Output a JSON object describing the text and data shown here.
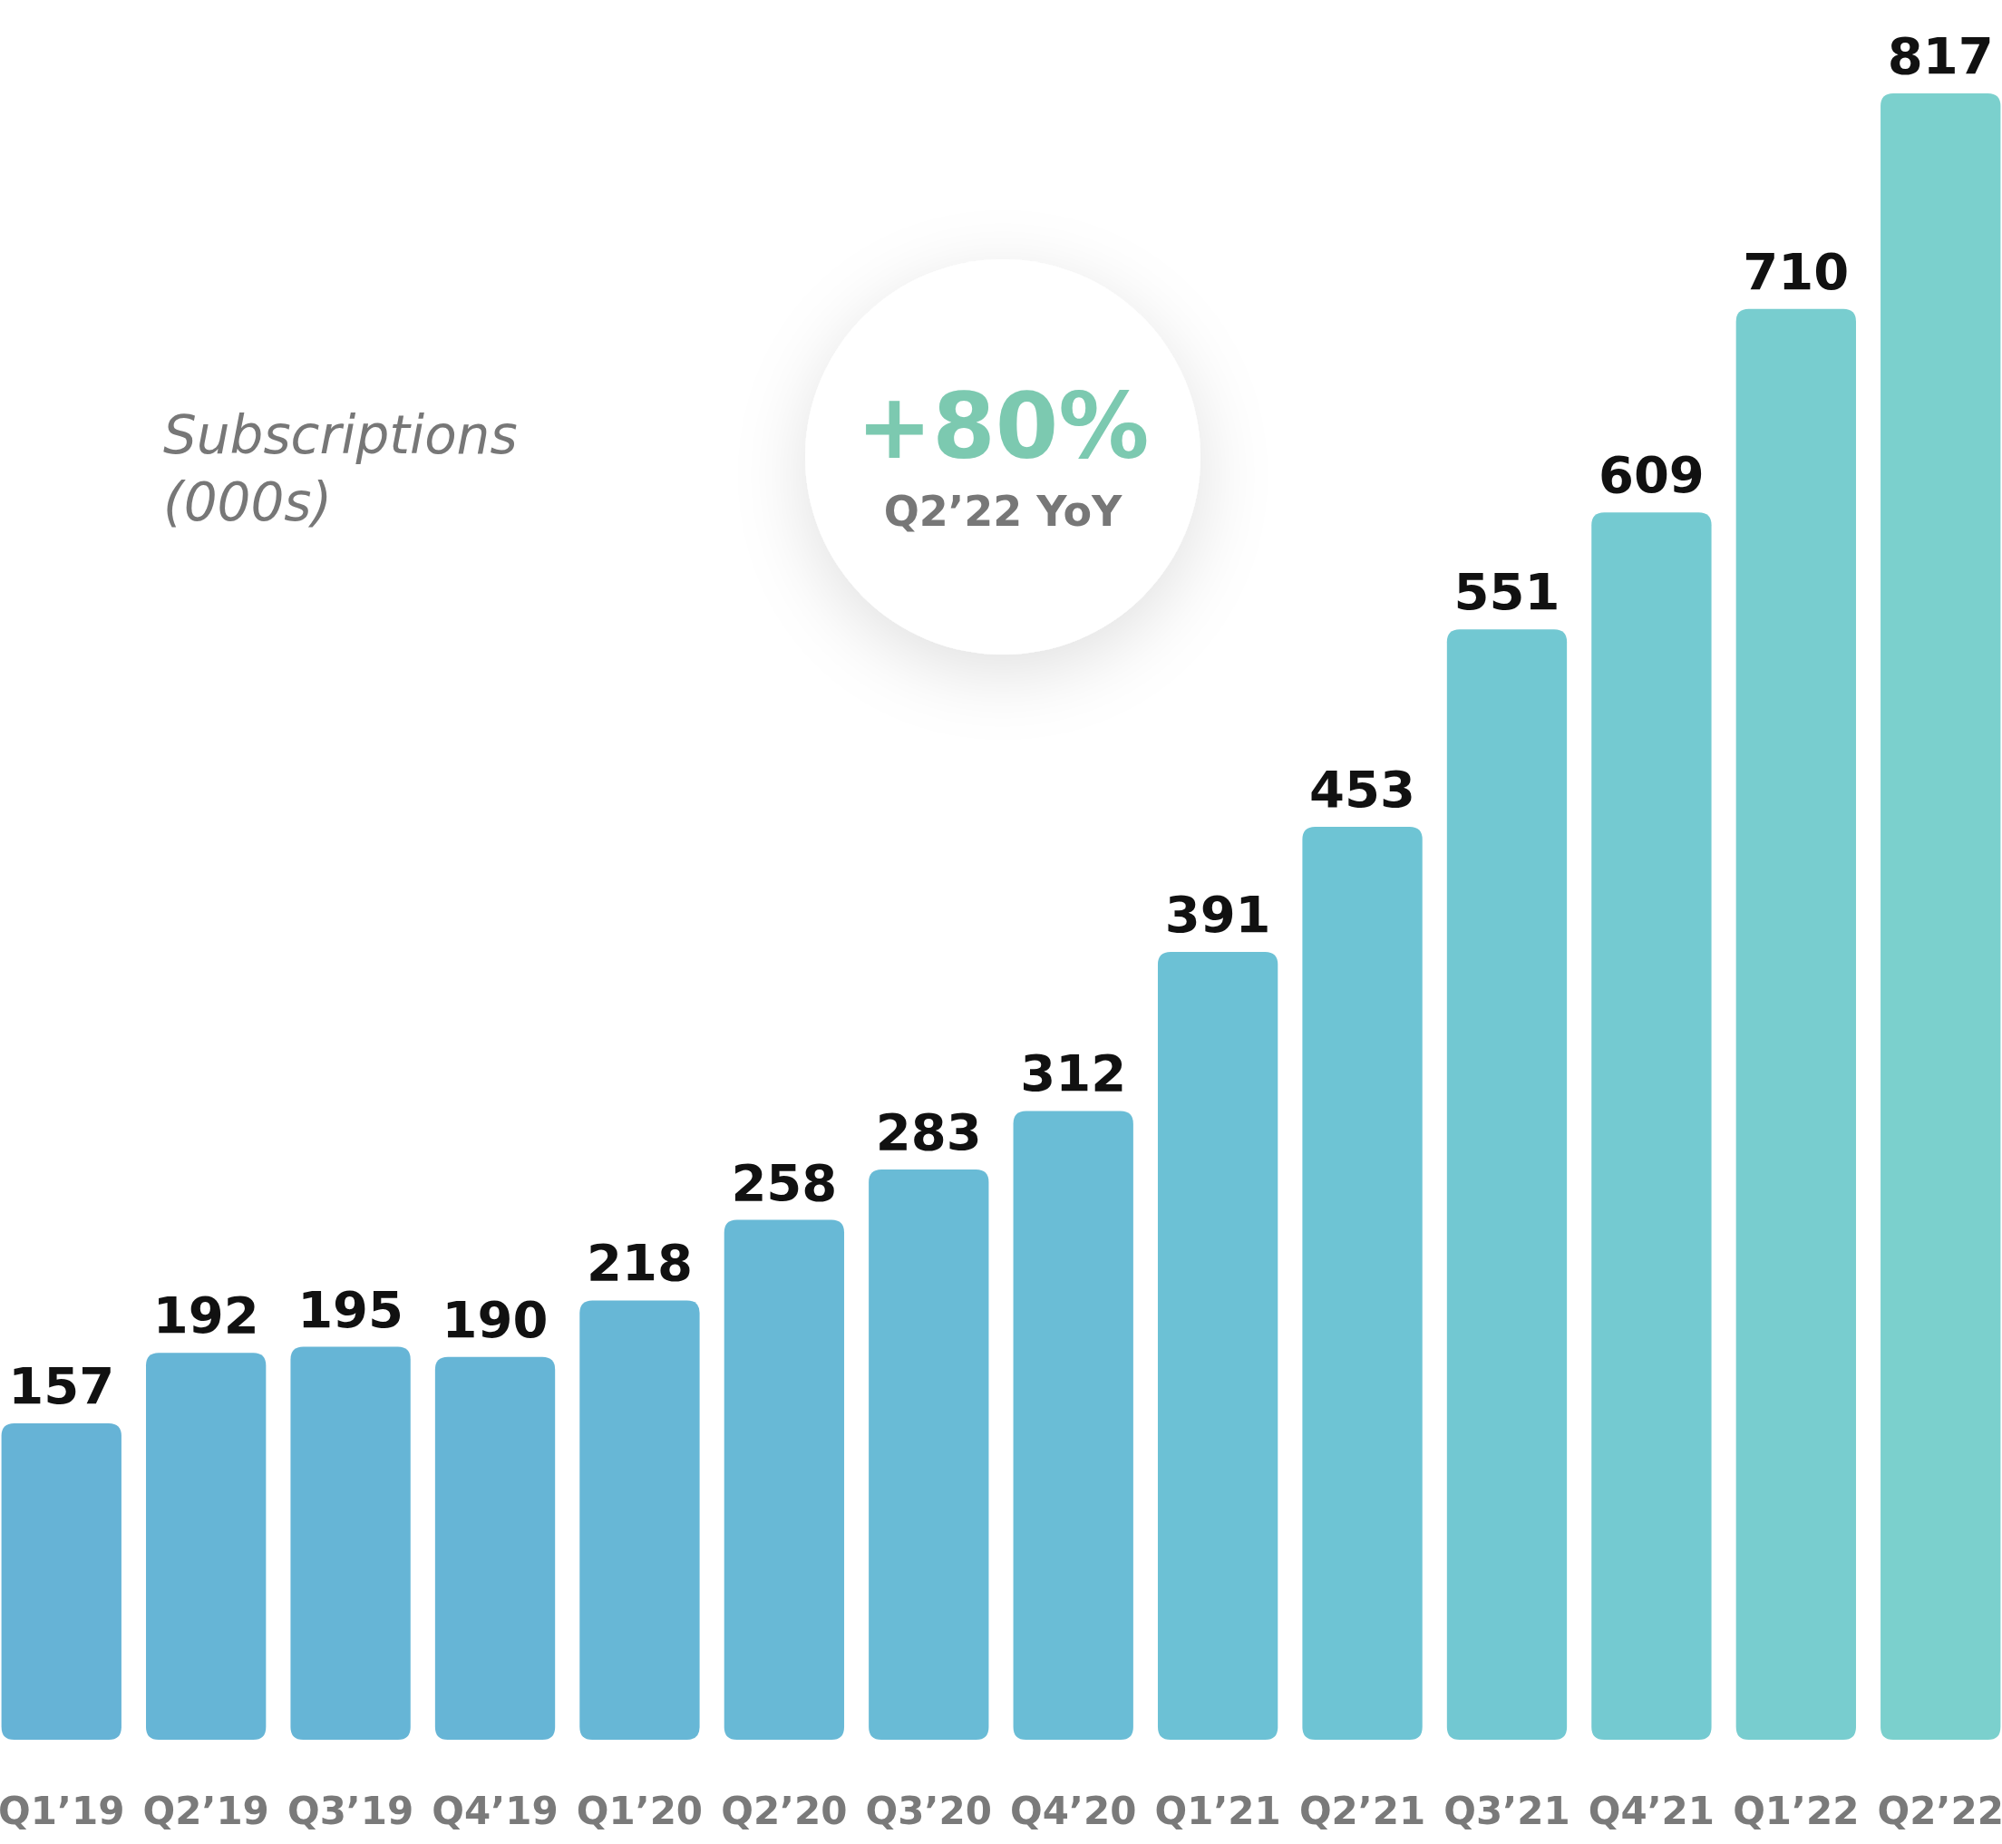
{
  "chart_data": {
    "type": "bar",
    "title": "Subscriptions (000s)",
    "categories": [
      "Q1’19",
      "Q2’19",
      "Q3’19",
      "Q4’19",
      "Q1’20",
      "Q2’20",
      "Q3’20",
      "Q4’20",
      "Q1’21",
      "Q2’21",
      "Q3’21",
      "Q4’21",
      "Q1’22",
      "Q2’22"
    ],
    "values": [
      157,
      192,
      195,
      190,
      218,
      258,
      283,
      312,
      391,
      453,
      551,
      609,
      710,
      817
    ],
    "colors": [
      "#66b3d6",
      "#66b5d6",
      "#66b5d6",
      "#66b5d6",
      "#67b7d6",
      "#68b9d6",
      "#69bbd6",
      "#6abdd6",
      "#6cc1d5",
      "#6ec4d4",
      "#72c8d2",
      "#74cad1",
      "#78cdcf",
      "#7bd0cd"
    ],
    "data_labels": true,
    "annotations": [
      "+80%",
      "Q2’22 YoY"
    ]
  }
}
